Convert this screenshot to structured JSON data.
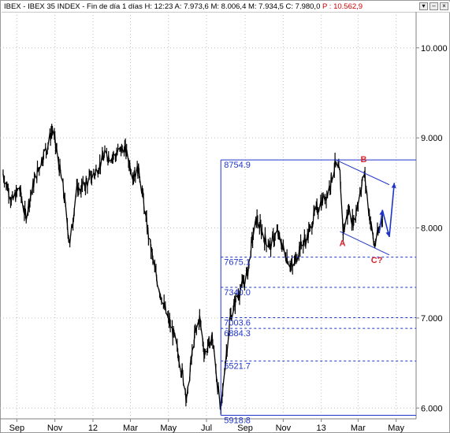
{
  "window": {
    "title_prefix": "IBEX - IBEX 35 INDEX - Fin de día 1 días",
    "quote": "H: 12:23  A: 7.973,6  M: 8.006,4  M: 7.934,5  C: 7.980,0",
    "pct_label": "P : 10.562,9",
    "buttons": {
      "pin": "▾",
      "minimize": "–",
      "close": "×"
    }
  },
  "colors": {
    "price": "#000000",
    "fib": "#1f35c9",
    "wave_label": "#d9262e",
    "arrow": "#1f35c9",
    "grid": "#c0c0c0"
  },
  "chart_data": {
    "type": "line",
    "title": "IBEX - IBEX 35 INDEX",
    "ylim": [
      5880,
      10400
    ],
    "y_ticks": [
      {
        "value": 6000,
        "label": "6.000"
      },
      {
        "value": 7000,
        "label": "7.000"
      },
      {
        "value": 8000,
        "label": "8.000"
      },
      {
        "value": 9000,
        "label": "9.000"
      },
      {
        "value": 10000,
        "label": "10.000"
      }
    ],
    "x_ticks": [
      {
        "date": "2011-09-01",
        "label": "Sep"
      },
      {
        "date": "2011-11-01",
        "label": "Nov"
      },
      {
        "date": "2012-01-01",
        "label": "12"
      },
      {
        "date": "2012-03-01",
        "label": "Mar"
      },
      {
        "date": "2012-05-01",
        "label": "May"
      },
      {
        "date": "2012-07-01",
        "label": "Jul"
      },
      {
        "date": "2012-09-01",
        "label": "Sep"
      },
      {
        "date": "2012-11-01",
        "label": "Nov"
      },
      {
        "date": "2013-01-01",
        "label": "13"
      },
      {
        "date": "2013-03-01",
        "label": "Mar"
      },
      {
        "date": "2013-05-01",
        "label": "May"
      }
    ],
    "series": [
      {
        "points": [
          [
            "2011-08-10",
            8600
          ],
          [
            "2011-08-25",
            8300
          ],
          [
            "2011-09-05",
            8450
          ],
          [
            "2011-09-15",
            8120
          ],
          [
            "2011-09-28",
            8500
          ],
          [
            "2011-10-10",
            8750
          ],
          [
            "2011-10-20",
            8900
          ],
          [
            "2011-10-28",
            9100
          ],
          [
            "2011-11-05",
            8800
          ],
          [
            "2011-11-15",
            8400
          ],
          [
            "2011-11-25",
            7800
          ],
          [
            "2011-12-05",
            8400
          ],
          [
            "2011-12-15",
            8450
          ],
          [
            "2012-01-03",
            8600
          ],
          [
            "2012-01-20",
            8800
          ],
          [
            "2012-02-05",
            8800
          ],
          [
            "2012-02-20",
            8900
          ],
          [
            "2012-03-05",
            8600
          ],
          [
            "2012-03-15",
            8650
          ],
          [
            "2012-03-28",
            8000
          ],
          [
            "2012-04-10",
            7500
          ],
          [
            "2012-04-25",
            7100
          ],
          [
            "2012-05-10",
            6800
          ],
          [
            "2012-05-20",
            6500
          ],
          [
            "2012-05-31",
            6100
          ],
          [
            "2012-06-06",
            6500
          ],
          [
            "2012-06-12",
            6800
          ],
          [
            "2012-06-20",
            7000
          ],
          [
            "2012-06-28",
            6600
          ],
          [
            "2012-07-10",
            6800
          ],
          [
            "2012-07-18",
            6300
          ],
          [
            "2012-07-24",
            5950
          ],
          [
            "2012-07-31",
            6500
          ],
          [
            "2012-08-08",
            7000
          ],
          [
            "2012-08-17",
            7200
          ],
          [
            "2012-08-27",
            7350
          ],
          [
            "2012-09-05",
            7500
          ],
          [
            "2012-09-13",
            7900
          ],
          [
            "2012-09-20",
            8100
          ],
          [
            "2012-10-01",
            7900
          ],
          [
            "2012-10-11",
            7800
          ],
          [
            "2012-10-22",
            7950
          ],
          [
            "2012-11-05",
            7700
          ],
          [
            "2012-11-16",
            7550
          ],
          [
            "2012-11-28",
            7800
          ],
          [
            "2012-12-10",
            7900
          ],
          [
            "2012-12-21",
            8150
          ],
          [
            "2013-01-02",
            8300
          ],
          [
            "2013-01-12",
            8400
          ],
          [
            "2013-01-23",
            8700
          ],
          [
            "2013-01-31",
            8600
          ],
          [
            "2013-02-05",
            7950
          ],
          [
            "2013-02-14",
            8200
          ],
          [
            "2013-02-22",
            8050
          ],
          [
            "2013-03-04",
            8400
          ],
          [
            "2013-03-11",
            8600
          ],
          [
            "2013-03-20",
            8100
          ],
          [
            "2013-03-27",
            7800
          ],
          [
            "2013-04-03",
            7950
          ],
          [
            "2013-04-09",
            8150
          ]
        ]
      }
    ],
    "fib_levels": [
      {
        "label": "8754.9",
        "value": 8754.9,
        "style": "solid"
      },
      {
        "label": "7675.1",
        "value": 7675.1,
        "style": "dashed"
      },
      {
        "label": "7340.0",
        "value": 7340.0,
        "style": "dashed"
      },
      {
        "label": "7003.6",
        "value": 7003.6,
        "style": "dashed"
      },
      {
        "label": "6884.3",
        "value": 6884.3,
        "style": "dashed"
      },
      {
        "label": "6521.7",
        "value": 6521.7,
        "style": "dashed"
      },
      {
        "label": "5918.8",
        "value": 5918.8,
        "style": "solid"
      }
    ],
    "fib_anchor_date": "2012-07-24",
    "channel_lines": [
      [
        [
          "2013-01-23",
          8760
        ],
        [
          "2013-04-20",
          8480
        ]
      ],
      [
        [
          "2013-01-31",
          7960
        ],
        [
          "2013-04-20",
          7700
        ]
      ]
    ],
    "wave_labels": [
      {
        "text": "A",
        "date": "2013-02-04",
        "value": 7800
      },
      {
        "text": "B",
        "date": "2013-03-10",
        "value": 8730
      },
      {
        "text": "C?",
        "date": "2013-03-31",
        "value": 7610
      }
    ],
    "projection_arrow": [
      [
        "2013-04-04",
        7950
      ],
      [
        "2013-04-09",
        8200
      ],
      [
        "2013-04-20",
        7900
      ],
      [
        "2013-04-28",
        8500
      ]
    ]
  }
}
